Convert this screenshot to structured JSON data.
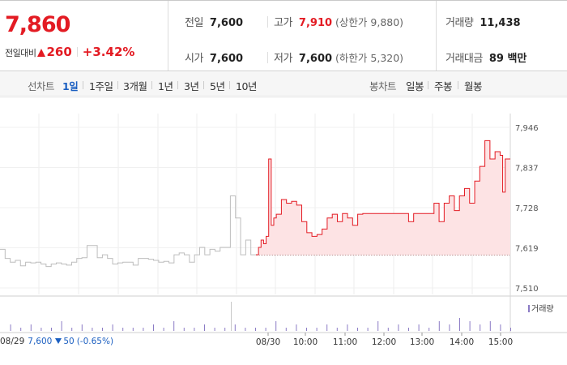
{
  "quote": {
    "current_price": "7,860",
    "change_label": "전일대비",
    "change_value": "260",
    "change_direction": "up",
    "change_percent": "+3.42%",
    "stats": {
      "prev_close": {
        "label": "전일",
        "value": "7,600"
      },
      "open": {
        "label": "시가",
        "value": "7,600"
      },
      "high": {
        "label": "고가",
        "value": "7,910",
        "sub": "(상한가 9,880)"
      },
      "low": {
        "label": "저가",
        "value": "7,600",
        "sub": "(하한가 5,320)"
      },
      "volume": {
        "label": "거래량",
        "value": "11,438"
      },
      "trade_amount": {
        "label": "거래대금",
        "value": "89 백만"
      }
    }
  },
  "toolbar": {
    "line_chart_label": "선차트",
    "line_periods": [
      "1일",
      "1주일",
      "3개월",
      "1년",
      "3년",
      "5년",
      "10년"
    ],
    "active_period": "1일",
    "candle_chart_label": "봉차트",
    "candle_periods": [
      "일봉",
      "주봉",
      "월봉"
    ]
  },
  "chart_data": {
    "type": "line",
    "y_ticks": [
      "7,946",
      "7,837",
      "7,728",
      "7,619",
      "7,510"
    ],
    "ylim": [
      7510,
      7946
    ],
    "baseline_price": 7600,
    "x_ticks": [
      "08/30",
      "10:00",
      "11:00",
      "12:00",
      "13:00",
      "14:00",
      "15:00"
    ],
    "prev_day_label": "08/29",
    "volume_legend": "거래량",
    "colors": {
      "prev_day_line": "#bdbdbd",
      "today_line": "#e31b23",
      "today_fill": "#fde3e4",
      "volume": "#8b7bc5",
      "down": "#1b5fc1"
    },
    "series": [
      {
        "x": [
          0,
          0.02,
          0.04,
          0.06,
          0.08,
          0.1,
          0.12,
          0.14,
          0.16,
          0.18,
          0.2,
          0.22,
          0.24,
          0.26,
          0.28,
          0.3,
          0.32,
          0.34,
          0.36,
          0.38,
          0.4,
          0.42,
          0.44,
          0.46,
          0.48,
          0.5,
          0.52,
          0.54,
          0.56,
          0.58,
          0.6,
          0.62,
          0.64,
          0.66,
          0.68,
          0.7,
          0.72,
          0.74,
          0.76,
          0.78,
          0.8,
          0.82,
          0.84,
          0.86,
          0.88,
          0.9,
          0.92,
          0.94,
          0.96,
          0.98,
          1
        ],
        "values": [
          7615,
          7590,
          7580,
          7585,
          7570,
          7580,
          7578,
          7580,
          7575,
          7568,
          7575,
          7578,
          7575,
          7572,
          7580,
          7590,
          7592,
          7625,
          7625,
          7592,
          7600,
          7590,
          7575,
          7578,
          7580,
          7580,
          7572,
          7590,
          7590,
          7588,
          7585,
          7580,
          7582,
          7578,
          7600,
          7605,
          7600,
          7580,
          7600,
          7620,
          7600,
          7615,
          7610,
          7620,
          7620,
          7760,
          7700,
          7600,
          7640,
          7600,
          7600
        ]
      },
      {
        "x": [
          0,
          0.01,
          0.02,
          0.03,
          0.04,
          0.05,
          0.06,
          0.07,
          0.08,
          0.1,
          0.12,
          0.14,
          0.16,
          0.18,
          0.2,
          0.22,
          0.24,
          0.26,
          0.28,
          0.3,
          0.32,
          0.34,
          0.36,
          0.38,
          0.4,
          0.42,
          0.44,
          0.46,
          0.48,
          0.5,
          0.52,
          0.54,
          0.56,
          0.58,
          0.6,
          0.62,
          0.64,
          0.66,
          0.68,
          0.7,
          0.72,
          0.74,
          0.76,
          0.78,
          0.8,
          0.82,
          0.84,
          0.86,
          0.88,
          0.9,
          0.92,
          0.94,
          0.96,
          0.97,
          0.98,
          0.99,
          1
        ],
        "values": [
          7600,
          7620,
          7640,
          7630,
          7650,
          7860,
          7680,
          7700,
          7710,
          7750,
          7740,
          7745,
          7735,
          7690,
          7660,
          7650,
          7655,
          7670,
          7700,
          7710,
          7690,
          7712,
          7700,
          7680,
          7710,
          7712,
          7712,
          7712,
          7712,
          7712,
          7712,
          7712,
          7712,
          7712,
          7690,
          7712,
          7712,
          7712,
          7712,
          7740,
          7690,
          7740,
          7760,
          7720,
          7760,
          7780,
          7740,
          7800,
          7840,
          7910,
          7860,
          7880,
          7870,
          7770,
          7860,
          7860,
          7860
        ]
      }
    ],
    "volume": {
      "x": [
        0.02,
        0.04,
        0.06,
        0.08,
        0.1,
        0.12,
        0.14,
        0.16,
        0.18,
        0.2,
        0.22,
        0.24,
        0.26,
        0.28,
        0.3,
        0.32,
        0.34,
        0.36,
        0.38,
        0.4,
        0.42,
        0.44,
        0.46,
        0.48,
        0.5,
        0.52,
        0.54,
        0.56,
        0.58,
        0.6,
        0.62,
        0.64,
        0.66,
        0.68,
        0.7,
        0.72,
        0.74,
        0.76,
        0.78,
        0.8,
        0.82,
        0.84,
        0.86,
        0.88,
        0.9,
        0.92,
        0.94,
        0.96,
        0.98,
        1
      ],
      "values": [
        2,
        1,
        2,
        1,
        1,
        3,
        1,
        2,
        1,
        1,
        2,
        1,
        1,
        1,
        2,
        1,
        3,
        1,
        1,
        2,
        1,
        1,
        2,
        1,
        1,
        1,
        3,
        1,
        2,
        1,
        1,
        2,
        1,
        2,
        1,
        1,
        3,
        1,
        2,
        1,
        2,
        1,
        3,
        2,
        4,
        3,
        2,
        3,
        2,
        1
      ]
    }
  },
  "prev_day_summary": {
    "date": "08/29",
    "price": "7,600",
    "change": "50",
    "percent": "(-0.65%)"
  }
}
